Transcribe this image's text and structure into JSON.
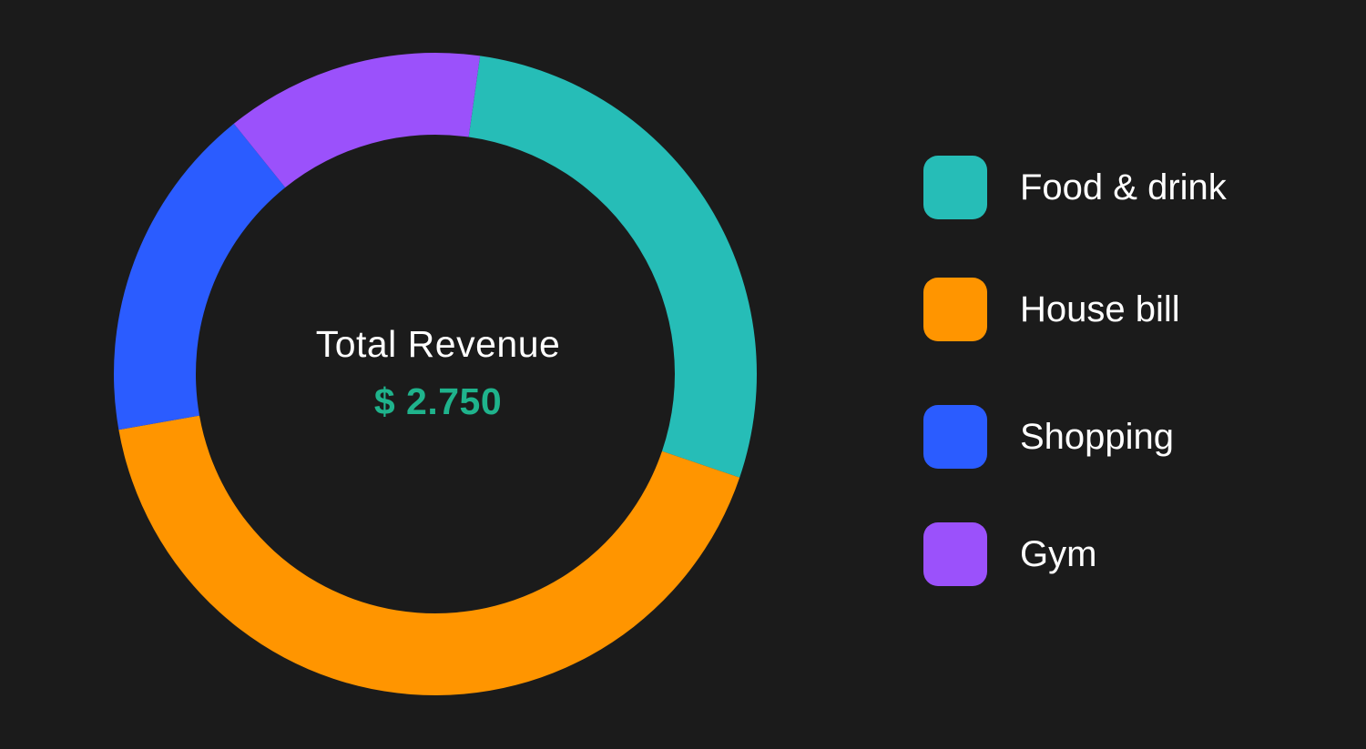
{
  "chart_data": {
    "type": "pie",
    "variant": "donut",
    "categories": [
      "Food & drink",
      "House bill",
      "Shopping",
      "Gym"
    ],
    "values": [
      28,
      42,
      17,
      13
    ],
    "colors": [
      "#26bdb7",
      "#ff9500",
      "#2b5cff",
      "#9b51fb"
    ],
    "legend": "right",
    "center_title": "Total Revenue",
    "center_value": "$ 2.750"
  },
  "theme": {
    "background": "#1b1b1b",
    "accent_value_color": "#1fb38c"
  }
}
